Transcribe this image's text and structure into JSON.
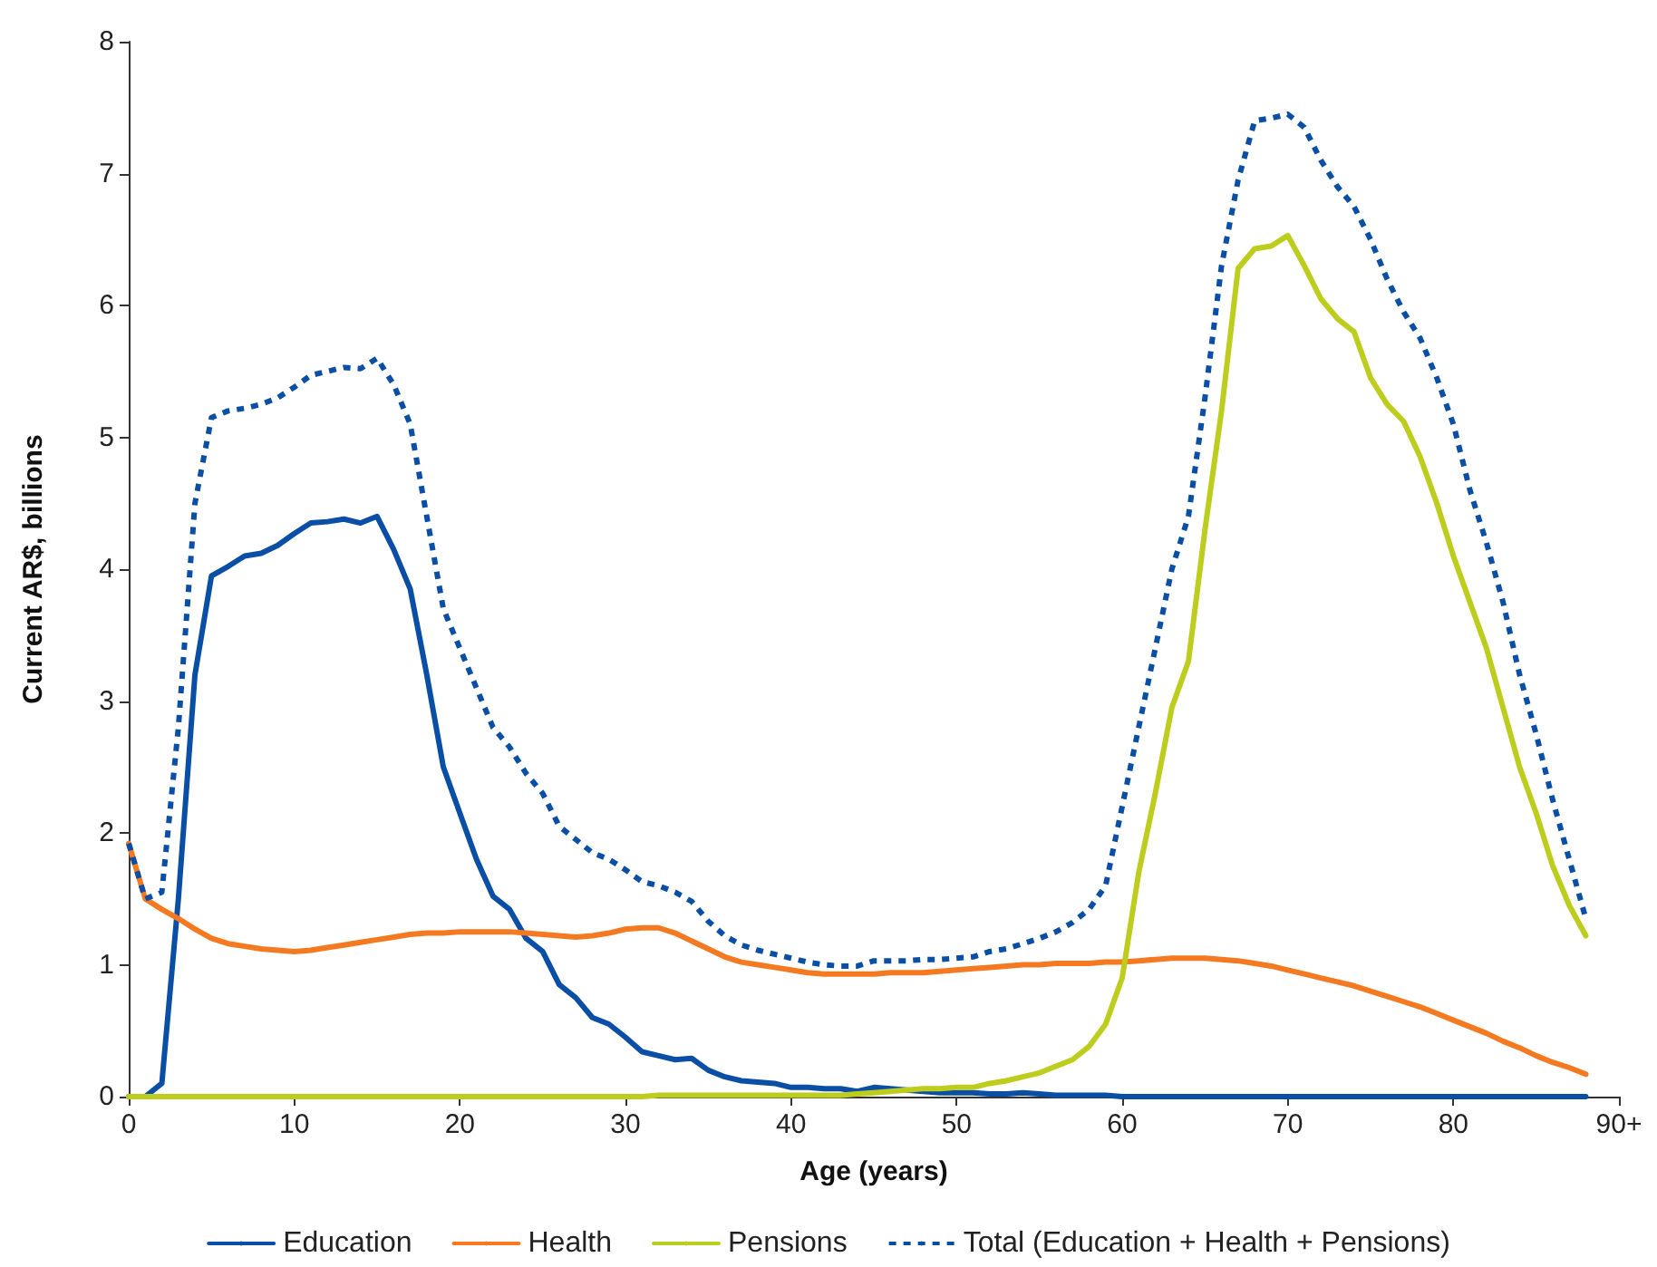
{
  "chart_data": {
    "type": "line",
    "xlabel": "Age (years)",
    "ylabel": "Current AR$, billions",
    "x": [
      0,
      1,
      2,
      3,
      4,
      5,
      6,
      7,
      8,
      9,
      10,
      11,
      12,
      13,
      14,
      15,
      16,
      17,
      18,
      19,
      20,
      21,
      22,
      23,
      24,
      25,
      26,
      27,
      28,
      29,
      30,
      31,
      32,
      33,
      34,
      35,
      36,
      37,
      38,
      39,
      40,
      41,
      42,
      43,
      44,
      45,
      46,
      47,
      48,
      49,
      50,
      51,
      52,
      53,
      54,
      55,
      56,
      57,
      58,
      59,
      60,
      61,
      62,
      63,
      64,
      65,
      66,
      67,
      68,
      69,
      70,
      71,
      72,
      73,
      74,
      75,
      76,
      77,
      78,
      79,
      80,
      81,
      82,
      83,
      84,
      85,
      86,
      87,
      88
    ],
    "xlim": [
      0,
      90
    ],
    "xticks": [
      0,
      10,
      20,
      30,
      40,
      50,
      60,
      70,
      80,
      {
        "value": 90,
        "label": "90+"
      }
    ],
    "ylim": [
      0,
      8
    ],
    "yticks": [
      0,
      1,
      2,
      3,
      4,
      5,
      6,
      7,
      8
    ],
    "grid": false,
    "legend": "bottom",
    "marker": "none",
    "line_style": "solid",
    "series": [
      {
        "name": "Education",
        "color": "#0a4fa5",
        "values": [
          0,
          0,
          0.1,
          1.5,
          3.2,
          3.95,
          4.02,
          4.1,
          4.12,
          4.18,
          4.27,
          4.35,
          4.36,
          4.38,
          4.35,
          4.4,
          4.15,
          3.85,
          3.2,
          2.5,
          2.15,
          1.8,
          1.52,
          1.42,
          1.2,
          1.1,
          0.85,
          0.75,
          0.6,
          0.55,
          0.45,
          0.34,
          0.31,
          0.28,
          0.29,
          0.2,
          0.15,
          0.12,
          0.11,
          0.1,
          0.07,
          0.07,
          0.06,
          0.06,
          0.04,
          0.07,
          0.06,
          0.05,
          0.04,
          0.03,
          0.03,
          0.03,
          0.02,
          0.02,
          0.03,
          0.02,
          0.01,
          0.01,
          0.01,
          0.01,
          0,
          0,
          0,
          0,
          0,
          0,
          0,
          0,
          0,
          0,
          0,
          0,
          0,
          0,
          0,
          0,
          0,
          0,
          0,
          0,
          0,
          0,
          0,
          0,
          0,
          0,
          0,
          0,
          0
        ]
      },
      {
        "name": "Health",
        "color": "#f47920",
        "values": [
          1.92,
          1.5,
          1.42,
          1.35,
          1.27,
          1.2,
          1.16,
          1.14,
          1.12,
          1.11,
          1.1,
          1.11,
          1.13,
          1.15,
          1.17,
          1.19,
          1.21,
          1.23,
          1.24,
          1.24,
          1.25,
          1.25,
          1.25,
          1.25,
          1.24,
          1.23,
          1.22,
          1.21,
          1.22,
          1.24,
          1.27,
          1.28,
          1.28,
          1.24,
          1.18,
          1.12,
          1.06,
          1.02,
          1,
          0.98,
          0.96,
          0.94,
          0.93,
          0.93,
          0.93,
          0.93,
          0.94,
          0.94,
          0.94,
          0.95,
          0.96,
          0.97,
          0.98,
          0.99,
          1,
          1,
          1.01,
          1.01,
          1.01,
          1.02,
          1.02,
          1.03,
          1.04,
          1.05,
          1.05,
          1.05,
          1.04,
          1.03,
          1.01,
          0.99,
          0.96,
          0.93,
          0.9,
          0.87,
          0.84,
          0.8,
          0.76,
          0.72,
          0.68,
          0.63,
          0.58,
          0.53,
          0.48,
          0.42,
          0.37,
          0.31,
          0.26,
          0.22,
          0.17
        ]
      },
      {
        "name": "Pensions",
        "color": "#bccd1e",
        "values": [
          0,
          0,
          0,
          0,
          0,
          0,
          0,
          0,
          0,
          0,
          0,
          0,
          0,
          0,
          0,
          0,
          0,
          0,
          0,
          0,
          0,
          0,
          0,
          0,
          0,
          0,
          0,
          0,
          0,
          0,
          0,
          0,
          0.01,
          0.01,
          0.01,
          0.01,
          0.01,
          0.01,
          0.01,
          0.01,
          0.01,
          0.01,
          0.01,
          0.01,
          0.02,
          0.03,
          0.04,
          0.05,
          0.06,
          0.06,
          0.07,
          0.07,
          0.1,
          0.12,
          0.15,
          0.18,
          0.23,
          0.28,
          0.38,
          0.55,
          0.9,
          1.7,
          2.3,
          2.95,
          3.3,
          4.3,
          5.2,
          6.28,
          6.43,
          6.45,
          6.53,
          6.3,
          6.05,
          5.9,
          5.8,
          5.45,
          5.25,
          5.12,
          4.85,
          4.5,
          4.1,
          3.75,
          3.4,
          2.95,
          2.5,
          2.15,
          1.75,
          1.45,
          1.22
        ]
      },
      {
        "name": "Total (Education + Health + Pensions)",
        "color": "#0a4fa5",
        "line_style": "dashed",
        "values": [
          1.92,
          1.5,
          1.55,
          2.8,
          4.5,
          5.15,
          5.2,
          5.22,
          5.25,
          5.3,
          5.38,
          5.47,
          5.5,
          5.53,
          5.52,
          5.6,
          5.4,
          5.1,
          4.4,
          3.7,
          3.4,
          3.1,
          2.8,
          2.65,
          2.45,
          2.3,
          2.05,
          1.95,
          1.85,
          1.8,
          1.72,
          1.63,
          1.6,
          1.55,
          1.48,
          1.33,
          1.22,
          1.15,
          1.11,
          1.08,
          1.05,
          1.02,
          1,
          0.99,
          0.99,
          1.03,
          1.03,
          1.03,
          1.04,
          1.04,
          1.05,
          1.06,
          1.1,
          1.12,
          1.16,
          1.2,
          1.25,
          1.32,
          1.42,
          1.6,
          2.2,
          2.8,
          3.4,
          4,
          4.4,
          5.3,
          6.3,
          6.95,
          7.4,
          7.42,
          7.45,
          7.35,
          7.1,
          6.9,
          6.75,
          6.5,
          6.2,
          5.95,
          5.75,
          5.45,
          5.1,
          4.6,
          4.2,
          3.75,
          3.2,
          2.75,
          2.25,
          1.8,
          1.35
        ]
      }
    ]
  }
}
